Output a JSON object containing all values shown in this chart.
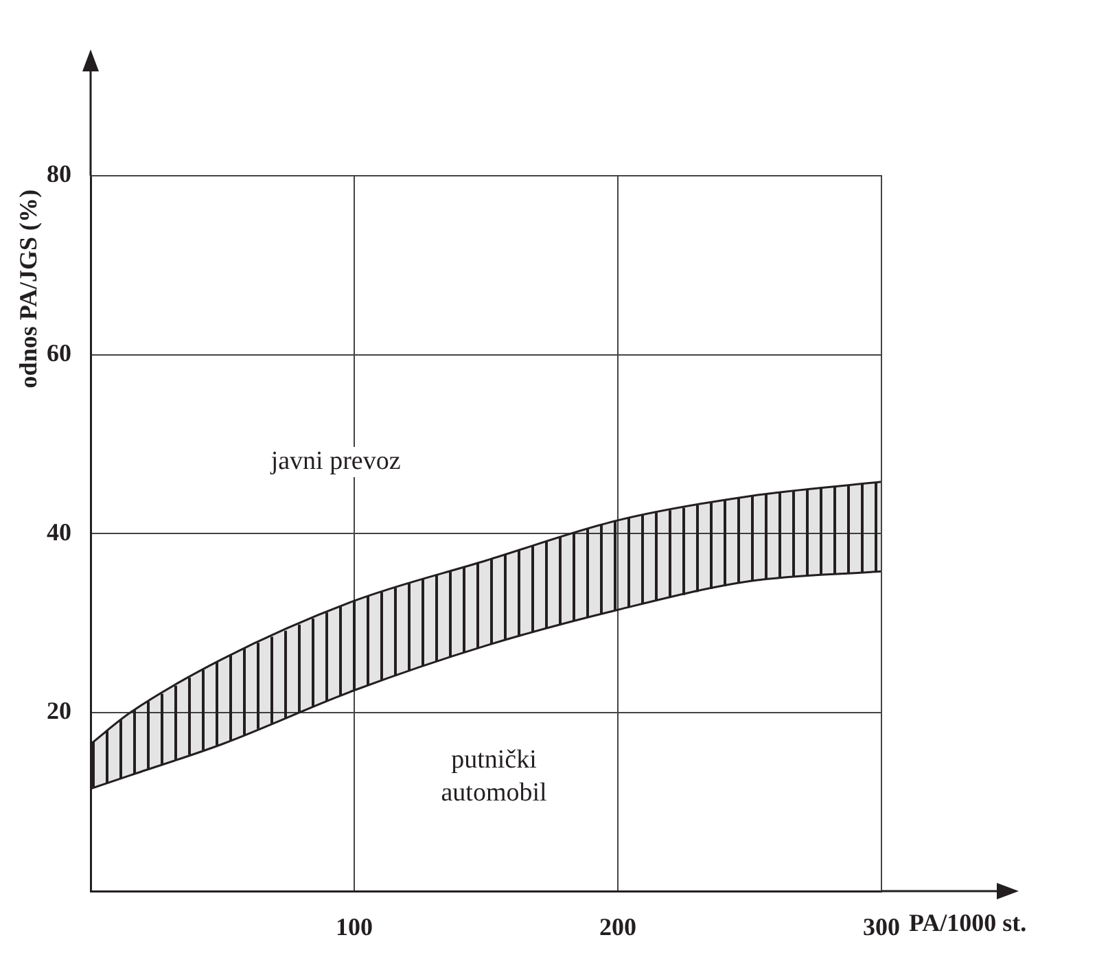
{
  "chart_data": {
    "type": "line",
    "xlabel": "PA/1000 st.",
    "ylabel": "odnos PA/JGS (%)",
    "x": [
      0,
      15,
      50,
      100,
      150,
      200,
      250,
      300
    ],
    "series": [
      {
        "color": "#231f20",
        "values": [
          11.5,
          13,
          16.5,
          22.5,
          27.5,
          31.5,
          34.7,
          35.8
        ]
      },
      {
        "type": "area",
        "color": "#231f20",
        "values": [
          16.5,
          20,
          26,
          32.5,
          37,
          41.5,
          44.2,
          45.8
        ]
      }
    ],
    "xlim": [
      0,
      300
    ],
    "xticks": [
      100,
      200,
      300
    ],
    "ylim": [
      0,
      80
    ],
    "yticks": [
      20,
      40,
      60,
      80
    ],
    "grid": true,
    "annotations": [
      "javni prevoz",
      "putnički\nautomobil"
    ]
  }
}
